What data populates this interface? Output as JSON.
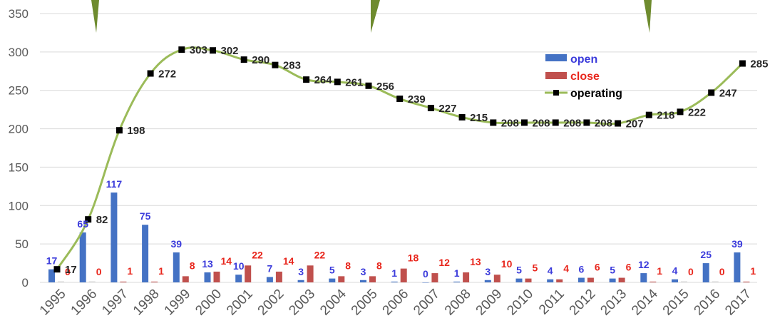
{
  "chart_data": {
    "type": "bar",
    "categories": [
      "1995",
      "1996",
      "1997",
      "1998",
      "1999",
      "2000",
      "2001",
      "2002",
      "2003",
      "2004",
      "2005",
      "2006",
      "2007",
      "2008",
      "2009",
      "2010",
      "2011",
      "2012",
      "2013",
      "2014",
      "2015",
      "2016",
      "2017"
    ],
    "ylim": [
      0,
      350
    ],
    "yticks": [
      0,
      50,
      100,
      150,
      200,
      250,
      300,
      350
    ],
    "grid": true,
    "legend_position": "top-right",
    "series": [
      {
        "name": "open",
        "type": "bar",
        "color": "#4472C4",
        "label_color": "#3B3BDB",
        "values": [
          17,
          65,
          117,
          75,
          39,
          13,
          10,
          7,
          3,
          5,
          3,
          1,
          0,
          1,
          3,
          5,
          4,
          6,
          5,
          12,
          4,
          25,
          39
        ]
      },
      {
        "name": "close",
        "type": "bar",
        "color": "#C0504D",
        "label_color": "#E8261C",
        "values": [
          0,
          0,
          1,
          1,
          8,
          14,
          22,
          14,
          22,
          8,
          8,
          18,
          12,
          13,
          10,
          5,
          4,
          6,
          6,
          1,
          0,
          0,
          1
        ]
      },
      {
        "name": "operating",
        "type": "line",
        "color": "#9BBB59",
        "marker_color": "#000000",
        "values": [
          17,
          82,
          198,
          272,
          303,
          302,
          290,
          283,
          264,
          261,
          256,
          239,
          227,
          215,
          208,
          208,
          208,
          208,
          207,
          218,
          222,
          247,
          285
        ]
      }
    ],
    "open_labels": [
      "17",
      "65",
      "117",
      "75",
      "39",
      "13",
      "10",
      "7",
      "3",
      "5",
      "3",
      "1",
      "0",
      "1",
      "3",
      "5",
      "4",
      "6",
      "5",
      "12",
      "4",
      "25",
      "39"
    ],
    "close_labels": [
      "0",
      "0",
      "1",
      "1",
      "8",
      "14",
      "22",
      "14",
      "22",
      "8",
      "8",
      "18",
      "12",
      "13",
      "10",
      "5",
      "4",
      "6",
      "6",
      "1",
      "0",
      "0",
      "1"
    ],
    "operating_labels": [
      "17",
      "82",
      "198",
      "272",
      "303",
      "302",
      "290",
      "283",
      "264",
      "261",
      "256",
      "239",
      "227",
      "215",
      "208",
      "208",
      "208",
      "208",
      "207",
      "218",
      "222",
      "247",
      "285"
    ],
    "legend": [
      "open",
      "close",
      "operating"
    ]
  }
}
